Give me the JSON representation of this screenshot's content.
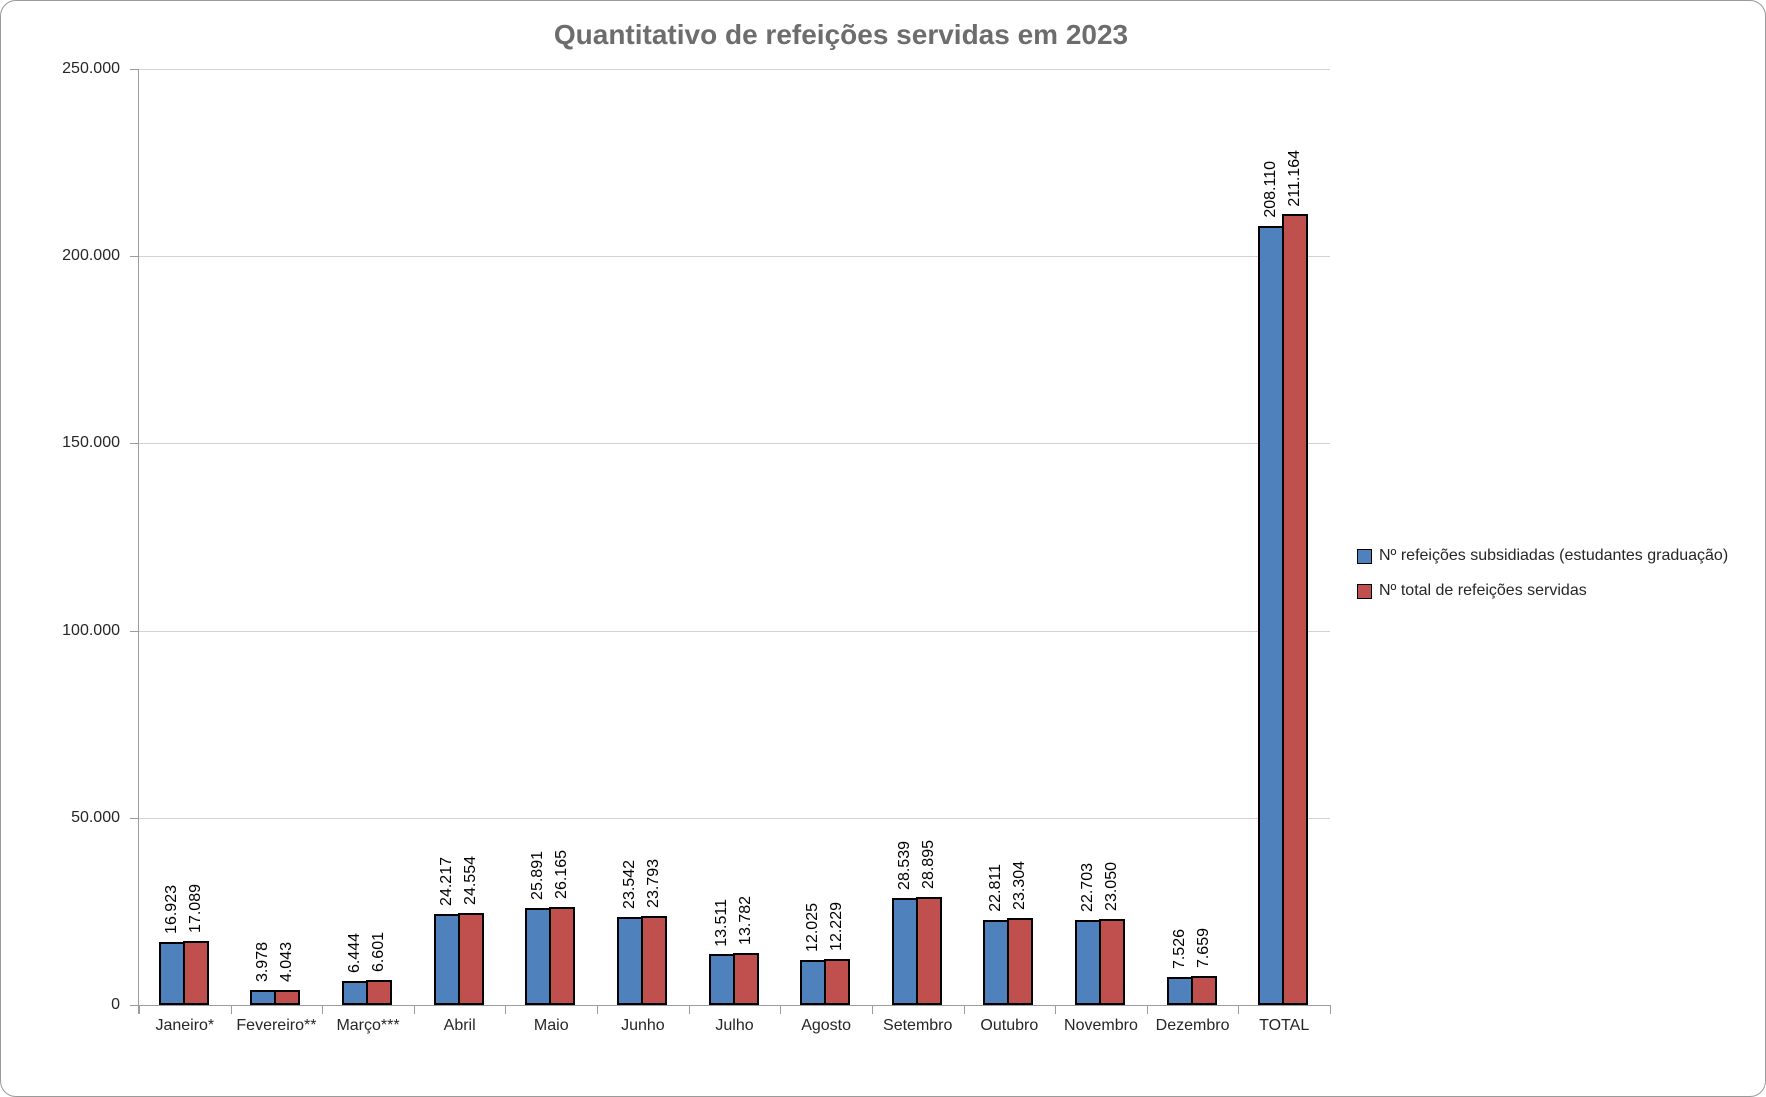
{
  "title": "Quantitativo de refeições servidas em 2023",
  "colors": {
    "series_subsidiadas": "#4F81BD",
    "series_total": "#C0504D",
    "bar_outline": "#000000",
    "title_text": "#6D6D6D",
    "gridline": "#D3D3D3",
    "axis_line": "#9C9C9C",
    "chart_border": "#9A9A9A"
  },
  "y_axis": {
    "ticks": [
      {
        "value": 250000,
        "label": "250.000"
      },
      {
        "value": 200000,
        "label": "200.000"
      },
      {
        "value": 150000,
        "label": "150.000"
      },
      {
        "value": 100000,
        "label": "100.000"
      },
      {
        "value": 50000,
        "label": "50.000"
      },
      {
        "value": 0,
        "label": "0"
      }
    ]
  },
  "legend": {
    "items": [
      {
        "label": "Nº refeições subsidiadas (estudantes graduação)",
        "color": "#4F81BD"
      },
      {
        "label": "Nº total de refeições servidas",
        "color": "#C0504D"
      }
    ]
  },
  "chart_data": {
    "type": "bar",
    "title": "Quantitativo de refeições servidas em 2023",
    "categories": [
      "Janeiro*",
      "Fevereiro**",
      "Março***",
      "Abril",
      "Maio",
      "Junho",
      "Julho",
      "Agosto",
      "Setembro",
      "Outubro",
      "Novembro",
      "Dezembro",
      "TOTAL"
    ],
    "series": [
      {
        "name": "Nº refeições subsidiadas (estudantes graduação)",
        "color": "#4F81BD",
        "values": [
          16923,
          3978,
          6444,
          24217,
          25891,
          23542,
          13511,
          12025,
          28539,
          22811,
          22703,
          7526,
          208110
        ],
        "labels": [
          "16.923",
          "3.978",
          "6.444",
          "24.217",
          "25.891",
          "23.542",
          "13.511",
          "12.025",
          "28.539",
          "22.811",
          "22.703",
          "7.526",
          "208.110"
        ]
      },
      {
        "name": "Nº total de refeições servidas",
        "color": "#C0504D",
        "values": [
          17089,
          4043,
          6601,
          24554,
          26165,
          23793,
          13782,
          12229,
          28895,
          23304,
          23050,
          7659,
          211164
        ],
        "labels": [
          "17.089",
          "4.043",
          "6.601",
          "24.554",
          "26.165",
          "23.793",
          "13.782",
          "12.229",
          "28.895",
          "23.304",
          "23.050",
          "7.659",
          "211.164"
        ]
      }
    ],
    "xlabel": "",
    "ylabel": "",
    "ylim": [
      0,
      250000
    ],
    "grid": true,
    "legend_position": "right",
    "data_labels": "rotated-90-above-bars"
  }
}
